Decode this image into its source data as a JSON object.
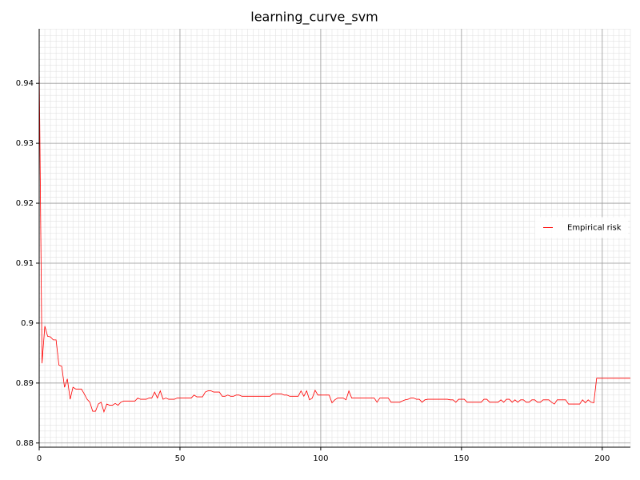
{
  "chart_data": {
    "type": "line",
    "title": "learning_curve_svm",
    "x": [
      0,
      1,
      2,
      3,
      4,
      5,
      6,
      7,
      8,
      9,
      10,
      11,
      12,
      13,
      14,
      15,
      16,
      17,
      18,
      19,
      20,
      21,
      22,
      23,
      24,
      25,
      26,
      27,
      28,
      29,
      30,
      31,
      32,
      33,
      34,
      35,
      36,
      37,
      38,
      39,
      40,
      41,
      42,
      43,
      44,
      45,
      46,
      47,
      48,
      49,
      50,
      51,
      52,
      53,
      54,
      55,
      56,
      57,
      58,
      59,
      60,
      61,
      62,
      63,
      64,
      65,
      66,
      67,
      68,
      69,
      70,
      71,
      72,
      73,
      74,
      75,
      76,
      77,
      78,
      79,
      80,
      81,
      82,
      83,
      84,
      85,
      86,
      87,
      88,
      89,
      90,
      91,
      92,
      93,
      94,
      95,
      96,
      97,
      98,
      99,
      100,
      101,
      102,
      103,
      104,
      105,
      106,
      107,
      108,
      109,
      110,
      111,
      112,
      113,
      114,
      115,
      116,
      117,
      118,
      119,
      120,
      121,
      122,
      123,
      124,
      125,
      126,
      127,
      128,
      129,
      130,
      131,
      132,
      133,
      134,
      135,
      136,
      137,
      138,
      139,
      140,
      141,
      142,
      143,
      144,
      145,
      146,
      147,
      148,
      149,
      150,
      151,
      152,
      153,
      154,
      155,
      156,
      157,
      158,
      159,
      160,
      161,
      162,
      163,
      164,
      165,
      166,
      167,
      168,
      169,
      170,
      171,
      172,
      173,
      174,
      175,
      176,
      177,
      178,
      179,
      180,
      181,
      182,
      183,
      184,
      185,
      186,
      187,
      188,
      189,
      190,
      191,
      192,
      193,
      194,
      195,
      196,
      197,
      198,
      199,
      200,
      201,
      202,
      203,
      204,
      205,
      206,
      207,
      208,
      209,
      210
    ],
    "series": [
      {
        "name": "Empirical risk",
        "color": "#ff0000",
        "values": [
          0.9432,
          0.8933,
          0.8995,
          0.8978,
          0.8977,
          0.8972,
          0.8972,
          0.893,
          0.8928,
          0.8893,
          0.8907,
          0.8873,
          0.8893,
          0.889,
          0.889,
          0.889,
          0.8882,
          0.8873,
          0.8868,
          0.8853,
          0.8853,
          0.8865,
          0.8868,
          0.8852,
          0.8865,
          0.8863,
          0.8863,
          0.8866,
          0.8863,
          0.8868,
          0.887,
          0.887,
          0.887,
          0.887,
          0.887,
          0.8875,
          0.8873,
          0.8873,
          0.8873,
          0.8875,
          0.8875,
          0.8885,
          0.8875,
          0.8887,
          0.8873,
          0.8875,
          0.8873,
          0.8873,
          0.8873,
          0.8875,
          0.8875,
          0.8875,
          0.8875,
          0.8875,
          0.8875,
          0.888,
          0.8877,
          0.8877,
          0.8877,
          0.8885,
          0.8887,
          0.8887,
          0.8885,
          0.8885,
          0.8885,
          0.8878,
          0.8878,
          0.888,
          0.8878,
          0.8878,
          0.888,
          0.888,
          0.8878,
          0.8878,
          0.8878,
          0.8878,
          0.8878,
          0.8878,
          0.8878,
          0.8878,
          0.8878,
          0.8878,
          0.8878,
          0.8882,
          0.8882,
          0.8882,
          0.8882,
          0.888,
          0.888,
          0.8878,
          0.8878,
          0.8878,
          0.8878,
          0.8887,
          0.8878,
          0.8887,
          0.8872,
          0.8875,
          0.8888,
          0.888,
          0.888,
          0.888,
          0.888,
          0.888,
          0.8867,
          0.8872,
          0.8875,
          0.8875,
          0.8875,
          0.8872,
          0.8887,
          0.8875,
          0.8875,
          0.8875,
          0.8875,
          0.8875,
          0.8875,
          0.8875,
          0.8875,
          0.8875,
          0.8868,
          0.8875,
          0.8875,
          0.8875,
          0.8875,
          0.8868,
          0.8868,
          0.8868,
          0.8868,
          0.887,
          0.8872,
          0.8873,
          0.8875,
          0.8875,
          0.8873,
          0.8873,
          0.8868,
          0.8872,
          0.8873,
          0.8873,
          0.8873,
          0.8873,
          0.8873,
          0.8873,
          0.8873,
          0.8873,
          0.8872,
          0.8872,
          0.8868,
          0.8873,
          0.8873,
          0.8873,
          0.8868,
          0.8868,
          0.8868,
          0.8868,
          0.8868,
          0.8868,
          0.8873,
          0.8873,
          0.8868,
          0.8868,
          0.8868,
          0.8868,
          0.8872,
          0.8868,
          0.8873,
          0.8873,
          0.8868,
          0.8872,
          0.8868,
          0.8872,
          0.8872,
          0.8868,
          0.8868,
          0.8872,
          0.8872,
          0.8868,
          0.8868,
          0.8872,
          0.8872,
          0.8872,
          0.8868,
          0.8865,
          0.8872,
          0.8872,
          0.8872,
          0.8872,
          0.8865,
          0.8865,
          0.8865,
          0.8865,
          0.8865,
          0.8872,
          0.8867,
          0.8872,
          0.8868,
          0.8867,
          0.8908,
          0.8908,
          0.8908,
          0.8908,
          0.8908,
          0.8908,
          0.8908,
          0.8908,
          0.8908,
          0.8908,
          0.8908,
          0.8908,
          0.8908
        ]
      }
    ],
    "xlim": [
      0,
      210
    ],
    "ylim": [
      0.8793,
      0.9491
    ],
    "xticks": [
      0,
      50,
      100,
      150,
      200
    ],
    "yticks": [
      0.88,
      0.89,
      0.9,
      0.91,
      0.92,
      0.93,
      0.94
    ],
    "grid": true,
    "minor_grid": true,
    "legend": "center right"
  }
}
